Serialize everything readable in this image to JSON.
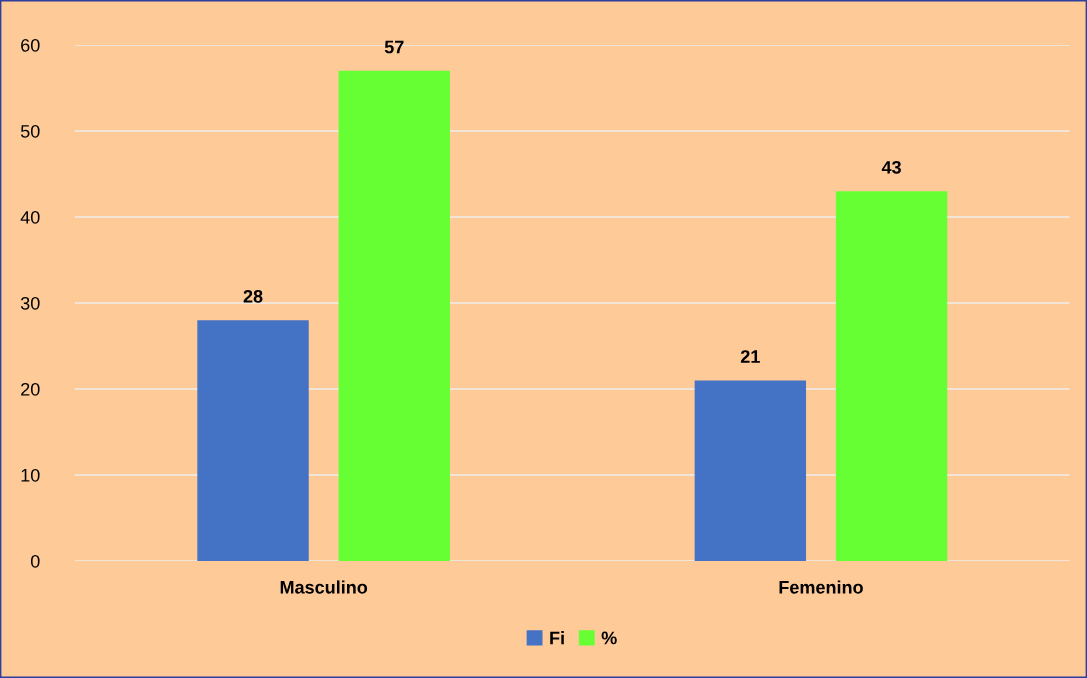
{
  "chart_data": {
    "type": "bar",
    "categories": [
      "Masculino",
      "Femenino"
    ],
    "series": [
      {
        "name": "Fi",
        "color": "#4472c4",
        "values": [
          28,
          21
        ]
      },
      {
        "name": "%",
        "color": "#66ff33",
        "values": [
          57,
          43
        ]
      }
    ],
    "ylim": [
      0,
      60
    ],
    "yticks": [
      0,
      10,
      20,
      30,
      40,
      50,
      60
    ],
    "grid": "y",
    "legend": "bottom",
    "data_labels": true
  }
}
